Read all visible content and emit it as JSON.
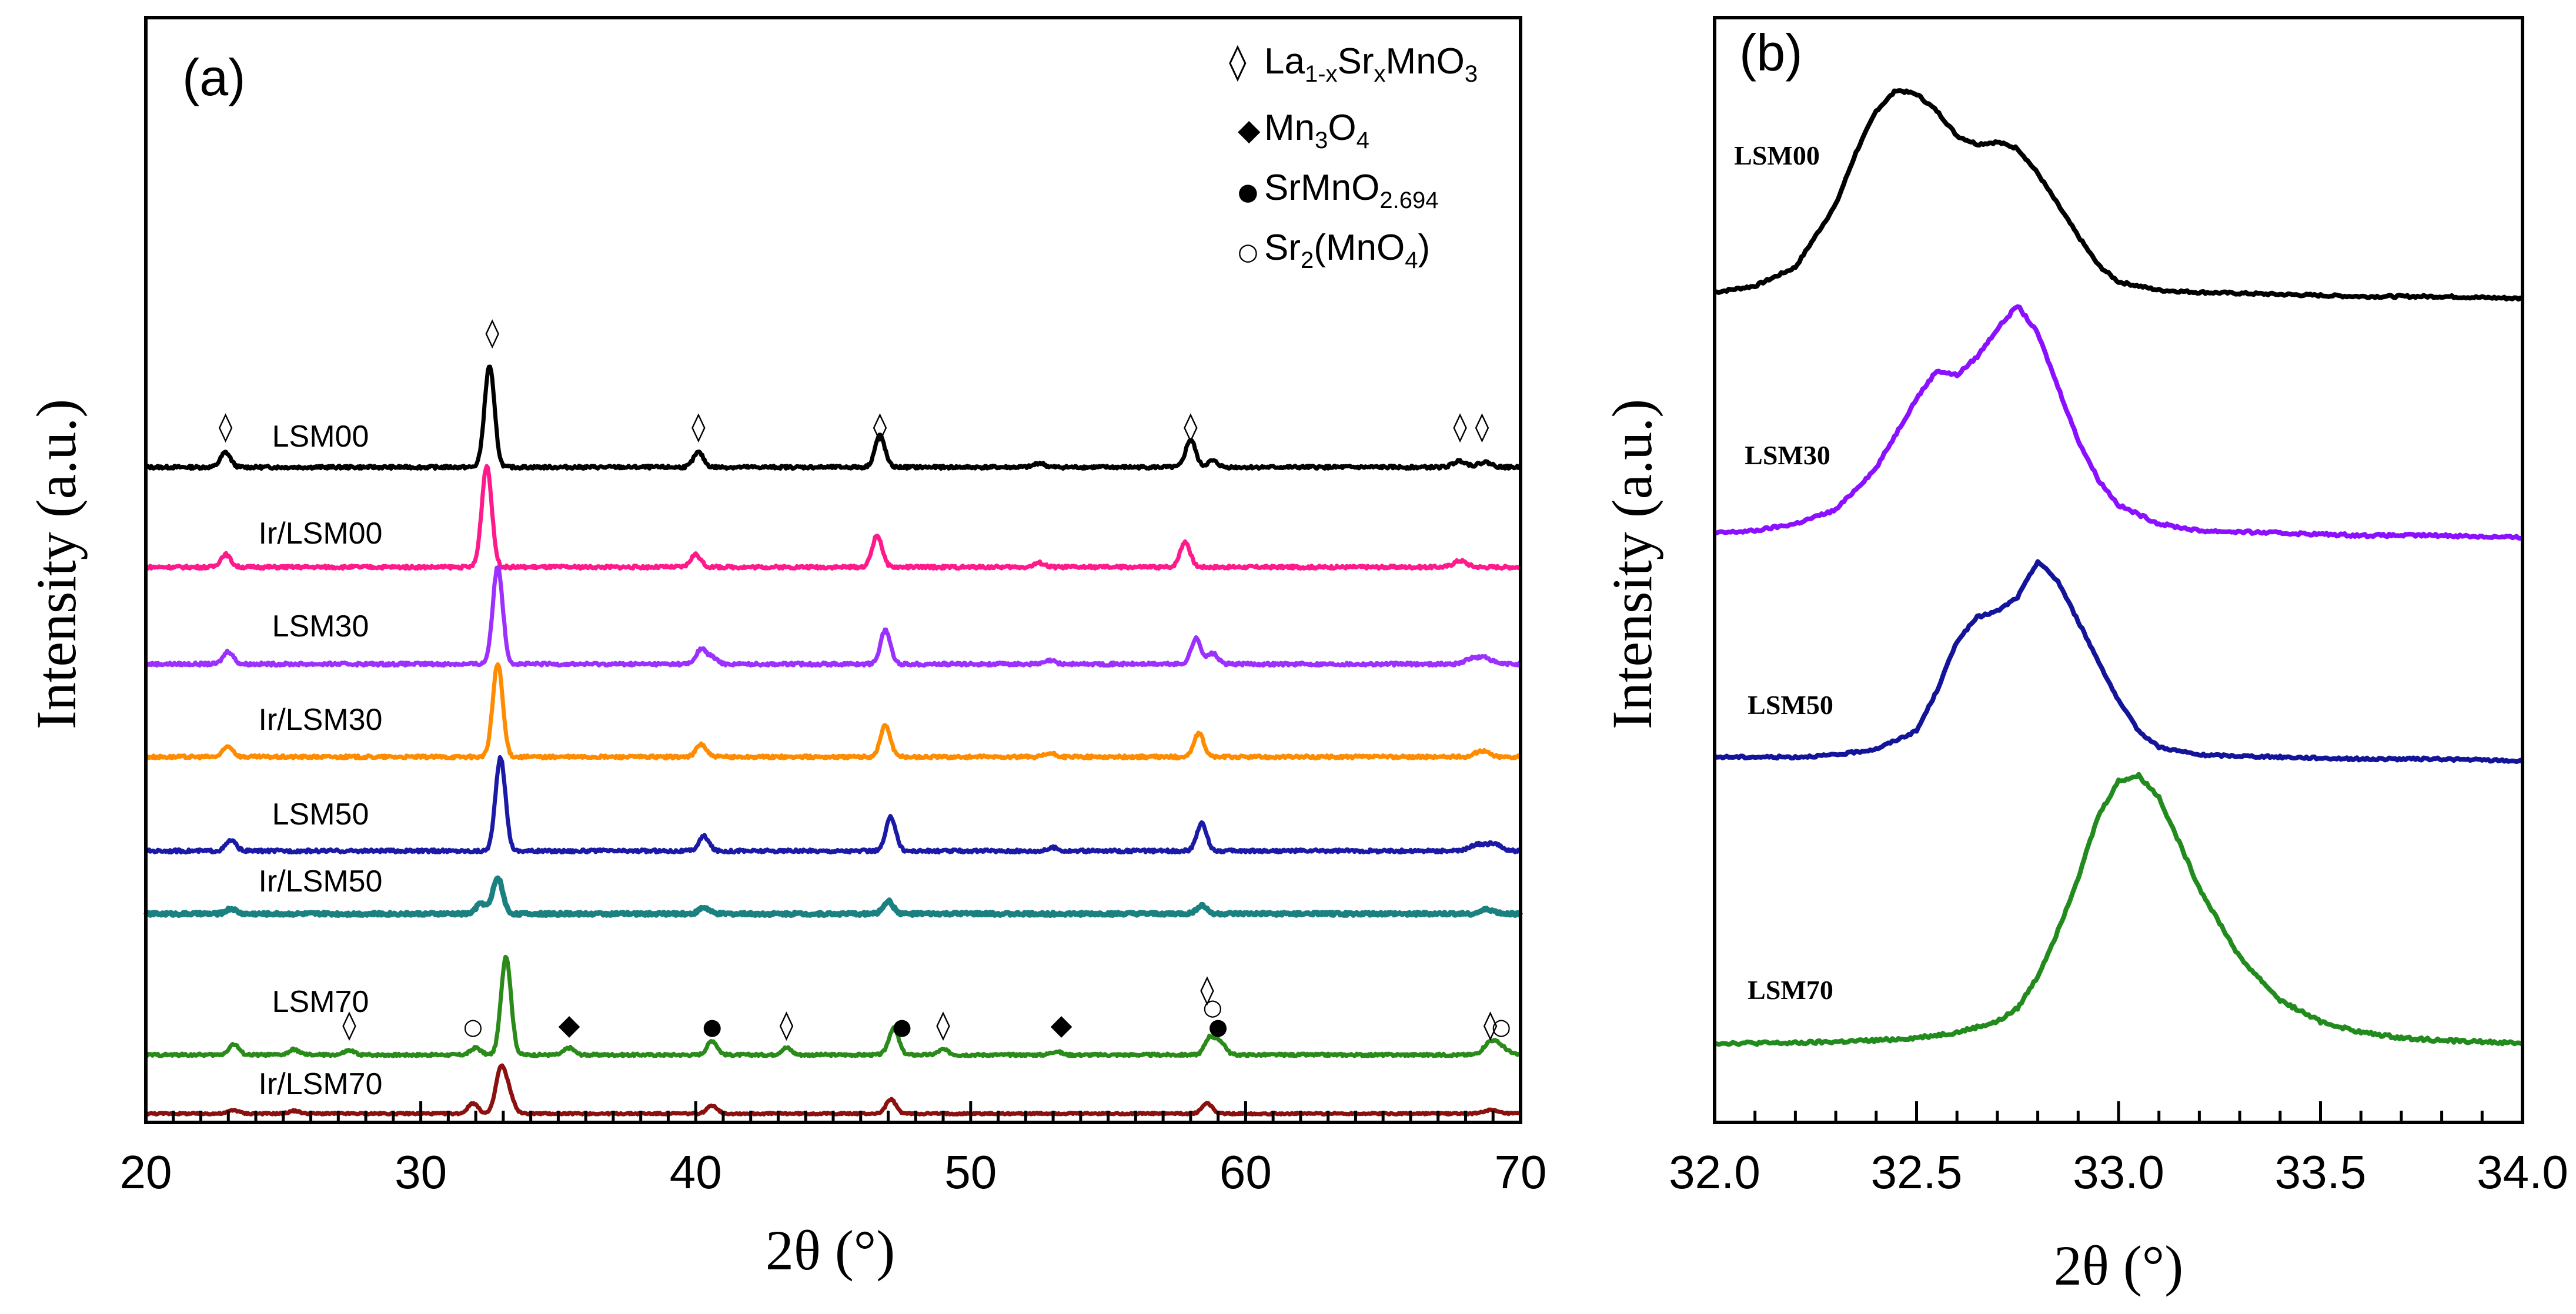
{
  "chart_data": [
    {
      "panel": "(a)",
      "type": "line",
      "title": "",
      "xlabel": "2θ (°)",
      "ylabel": "Intensity (a.u.)",
      "xlim": [
        20,
        70
      ],
      "xticks": [
        20,
        30,
        40,
        50,
        60,
        70
      ],
      "grid": false,
      "legend": {
        "placement": "top-right",
        "entries": [
          {
            "symbol": "◊",
            "label": "La1-xSrxMnO3"
          },
          {
            "symbol": "◆",
            "label": "Mn3O4"
          },
          {
            "symbol": "●",
            "label": "SrMnO2.694"
          },
          {
            "symbol": "○",
            "label": "Sr2(MnO4)"
          }
        ]
      },
      "series": [
        {
          "name": "LSM00",
          "color": "#000000",
          "peaks": [
            [
              22.9,
              0.35
            ],
            [
              32.5,
              2.4
            ],
            [
              40.1,
              0.35
            ],
            [
              46.7,
              0.75
            ],
            [
              52.5,
              0.1
            ],
            [
              58.0,
              0.65
            ],
            [
              58.8,
              0.15
            ],
            [
              67.8,
              0.15
            ],
            [
              68.7,
              0.12
            ]
          ]
        },
        {
          "name": "Ir/LSM00",
          "color": "#ff1a8c",
          "peaks": [
            [
              22.9,
              0.3
            ],
            [
              32.4,
              2.4
            ],
            [
              40.0,
              0.3
            ],
            [
              46.6,
              0.75
            ],
            [
              52.5,
              0.1
            ],
            [
              57.8,
              0.6
            ],
            [
              67.8,
              0.15
            ]
          ]
        },
        {
          "name": "LSM30",
          "color": "#9b30ff",
          "peaks": [
            [
              23.0,
              0.3
            ],
            [
              32.8,
              2.3
            ],
            [
              40.2,
              0.35
            ],
            [
              40.6,
              0.15
            ],
            [
              46.9,
              0.8
            ],
            [
              52.9,
              0.08
            ],
            [
              58.2,
              0.6
            ],
            [
              58.8,
              0.25
            ],
            [
              68.2,
              0.12
            ],
            [
              68.7,
              0.15
            ]
          ]
        },
        {
          "name": "Ir/LSM30",
          "color": "#ff8c00",
          "peaks": [
            [
              23.0,
              0.25
            ],
            [
              32.8,
              2.2
            ],
            [
              40.2,
              0.3
            ],
            [
              46.9,
              0.75
            ],
            [
              52.9,
              0.08
            ],
            [
              58.3,
              0.55
            ],
            [
              68.6,
              0.15
            ]
          ]
        },
        {
          "name": "LSM50",
          "color": "#1a1aa6",
          "peaks": [
            [
              23.1,
              0.25
            ],
            [
              32.9,
              2.2
            ],
            [
              40.3,
              0.35
            ],
            [
              47.1,
              0.8
            ],
            [
              53.0,
              0.08
            ],
            [
              58.4,
              0.65
            ],
            [
              68.4,
              0.15
            ],
            [
              69.0,
              0.18
            ]
          ]
        },
        {
          "name": "Ir/LSM50",
          "color": "#1a8080",
          "peaks": [
            [
              23.1,
              0.12
            ],
            [
              32.2,
              0.25
            ],
            [
              32.8,
              0.85
            ],
            [
              40.3,
              0.15
            ],
            [
              47.0,
              0.3
            ],
            [
              58.4,
              0.2
            ],
            [
              68.8,
              0.1
            ]
          ]
        },
        {
          "name": "LSM70",
          "color": "#2a8a1a",
          "peaks": [
            [
              23.2,
              0.3
            ],
            [
              25.4,
              0.15
            ],
            [
              27.4,
              0.12
            ],
            [
              32.0,
              0.2
            ],
            [
              33.1,
              2.8
            ],
            [
              35.4,
              0.2
            ],
            [
              40.6,
              0.4
            ],
            [
              43.3,
              0.2
            ],
            [
              47.2,
              0.75
            ],
            [
              49.0,
              0.15
            ],
            [
              53.1,
              0.1
            ],
            [
              58.7,
              0.5
            ],
            [
              59.1,
              0.35
            ],
            [
              68.9,
              0.35
            ],
            [
              69.3,
              0.2
            ]
          ]
        },
        {
          "name": "Ir/LSM70",
          "color": "#8b1010",
          "peaks": [
            [
              23.2,
              0.15
            ],
            [
              25.4,
              0.12
            ],
            [
              31.9,
              0.45
            ],
            [
              32.9,
              1.8
            ],
            [
              33.2,
              0.8
            ],
            [
              40.6,
              0.35
            ],
            [
              47.1,
              0.6
            ],
            [
              58.6,
              0.45
            ],
            [
              68.9,
              0.15
            ]
          ]
        }
      ],
      "annotations": [
        {
          "series": "LSM00",
          "symbol": "◊",
          "x": 22.9
        },
        {
          "series": "LSM00",
          "symbol": "◊",
          "x": 32.6
        },
        {
          "series": "LSM00",
          "symbol": "◊",
          "x": 40.1
        },
        {
          "series": "LSM00",
          "symbol": "◊",
          "x": 46.7
        },
        {
          "series": "LSM00",
          "symbol": "◊",
          "x": 58.0
        },
        {
          "series": "LSM00",
          "symbol": "◊",
          "x": 67.8
        },
        {
          "series": "LSM00",
          "symbol": "◊",
          "x": 68.6
        },
        {
          "series": "LSM70",
          "symbol": "◊",
          "x": 27.4
        },
        {
          "series": "LSM70",
          "symbol": "○",
          "x": 31.9
        },
        {
          "series": "LSM70",
          "symbol": "◆",
          "x": 35.4
        },
        {
          "series": "LSM70",
          "symbol": "●",
          "x": 40.6
        },
        {
          "series": "LSM70",
          "symbol": "◊",
          "x": 43.3
        },
        {
          "series": "LSM70",
          "symbol": "●",
          "x": 47.5
        },
        {
          "series": "LSM70",
          "symbol": "◊",
          "x": 49.0
        },
        {
          "series": "LSM70",
          "symbol": "◆",
          "x": 53.3
        },
        {
          "series": "LSM70",
          "symbol": "◊",
          "x": 58.6
        },
        {
          "series": "LSM70",
          "symbol": "○",
          "x": 58.8
        },
        {
          "series": "LSM70",
          "symbol": "●",
          "x": 59.0
        },
        {
          "series": "LSM70",
          "symbol": "◊",
          "x": 68.9
        },
        {
          "series": "LSM70",
          "symbol": "○",
          "x": 69.3
        }
      ]
    },
    {
      "panel": "(b)",
      "type": "line",
      "title": "",
      "xlabel": "2θ (°)",
      "ylabel": "Intensity (a.u.)",
      "xlim": [
        32.0,
        34.0
      ],
      "xticks": [
        "32.0",
        "32.5",
        "33.0",
        "33.5",
        "34.0"
      ],
      "grid": false,
      "series": [
        {
          "name": "LSM00",
          "color": "#000000",
          "x": [
            32.0,
            32.1,
            32.2,
            32.3,
            32.35,
            32.4,
            32.45,
            32.5,
            32.55,
            32.6,
            32.65,
            32.7,
            32.75,
            32.8,
            32.85,
            32.9,
            32.95,
            33.0,
            33.1,
            33.2,
            33.4,
            33.6,
            33.8,
            34.0
          ],
          "y": [
            0.03,
            0.06,
            0.15,
            0.45,
            0.7,
            0.9,
            1.0,
            0.98,
            0.9,
            0.78,
            0.74,
            0.75,
            0.72,
            0.6,
            0.45,
            0.3,
            0.16,
            0.08,
            0.04,
            0.03,
            0.02,
            0.01,
            0.01,
            0.0
          ]
        },
        {
          "name": "LSM30",
          "color": "#8b10ff",
          "x": [
            32.0,
            32.1,
            32.2,
            32.3,
            32.4,
            32.45,
            32.5,
            32.55,
            32.6,
            32.65,
            32.7,
            32.75,
            32.8,
            32.85,
            32.9,
            32.95,
            33.0,
            33.1,
            33.2,
            33.4,
            33.6,
            33.8,
            34.0
          ],
          "y": [
            0.02,
            0.03,
            0.06,
            0.12,
            0.3,
            0.45,
            0.6,
            0.72,
            0.7,
            0.78,
            0.9,
            1.0,
            0.88,
            0.65,
            0.42,
            0.25,
            0.14,
            0.06,
            0.03,
            0.02,
            0.01,
            0.01,
            0.0
          ]
        },
        {
          "name": "LSM50",
          "color": "#14149a",
          "x": [
            32.0,
            32.2,
            32.3,
            32.4,
            32.5,
            32.55,
            32.6,
            32.65,
            32.7,
            32.75,
            32.8,
            32.85,
            32.9,
            32.95,
            33.0,
            33.05,
            33.1,
            33.2,
            33.4,
            33.6,
            33.8,
            34.0
          ],
          "y": [
            0.02,
            0.02,
            0.03,
            0.06,
            0.15,
            0.35,
            0.6,
            0.72,
            0.75,
            0.82,
            1.0,
            0.9,
            0.7,
            0.5,
            0.3,
            0.15,
            0.07,
            0.03,
            0.02,
            0.01,
            0.01,
            0.0
          ]
        },
        {
          "name": "LSM70",
          "color": "#228b1e",
          "x": [
            32.0,
            32.2,
            32.4,
            32.5,
            32.6,
            32.7,
            32.75,
            32.8,
            32.85,
            32.9,
            32.95,
            33.0,
            33.05,
            33.1,
            33.15,
            33.2,
            33.3,
            33.4,
            33.5,
            33.6,
            33.7,
            33.8,
            34.0
          ],
          "y": [
            0.0,
            0.0,
            0.01,
            0.02,
            0.04,
            0.08,
            0.13,
            0.25,
            0.42,
            0.62,
            0.85,
            0.98,
            1.0,
            0.92,
            0.75,
            0.58,
            0.32,
            0.16,
            0.08,
            0.04,
            0.02,
            0.01,
            0.0
          ]
        }
      ]
    }
  ]
}
